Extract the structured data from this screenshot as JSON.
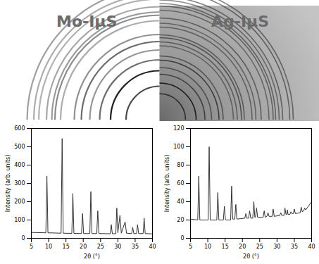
{
  "chart_data": [
    {
      "type": "line",
      "title": "Mo-IμS",
      "color": "#333333",
      "grid": false,
      "xlabel": "2θ (°)",
      "ylabel": "Intensity (arb. units)",
      "xlim": [
        5,
        40
      ],
      "xticks": [
        5,
        10,
        15,
        20,
        25,
        30,
        35,
        40
      ],
      "ylim": [
        0,
        600
      ],
      "yticks": [
        0,
        100,
        200,
        300,
        400,
        500,
        600
      ],
      "x": [
        5,
        9.2,
        9.5,
        9.8,
        13.6,
        13.9,
        14.2,
        16.7,
        17.0,
        17.3,
        19.5,
        19.8,
        20.1,
        21.9,
        22.2,
        22.5,
        23.9,
        24.2,
        24.5,
        27.8,
        28.1,
        28.4,
        29.4,
        29.7,
        30.0,
        30.6,
        31.0,
        32.1,
        32.5,
        34.0,
        34.3,
        34.6,
        35.4,
        35.7,
        36.0,
        37.3,
        37.6,
        37.9,
        40
      ],
      "values": [
        32,
        30,
        340,
        30,
        28,
        545,
        28,
        27,
        245,
        27,
        26,
        135,
        26,
        26,
        255,
        26,
        26,
        150,
        26,
        25,
        75,
        25,
        25,
        165,
        30,
        125,
        28,
        90,
        28,
        26,
        60,
        26,
        26,
        75,
        26,
        26,
        110,
        26,
        24
      ]
    },
    {
      "type": "line",
      "title": "Ag-IμS",
      "color": "#333333",
      "grid": false,
      "xlabel": "2θ (°)",
      "ylabel": "Intensity (arb. units)",
      "xlim": [
        5,
        40
      ],
      "xticks": [
        5,
        10,
        15,
        20,
        25,
        30,
        35,
        40
      ],
      "ylim": [
        0,
        120
      ],
      "yticks": [
        0,
        20,
        40,
        60,
        80,
        100,
        120
      ],
      "x": [
        5,
        7.1,
        7.4,
        7.7,
        10.1,
        10.4,
        10.7,
        12.6,
        12.9,
        13.2,
        14.5,
        14.8,
        15.1,
        16.6,
        16.9,
        17.2,
        17.8,
        18.1,
        18.4,
        20.7,
        21.0,
        21.3,
        21.8,
        22.1,
        22.4,
        23.0,
        23.3,
        23.6,
        23.8,
        24.1,
        24.4,
        26.0,
        26.3,
        26.6,
        27.1,
        27.4,
        27.7,
        28.6,
        28.9,
        29.2,
        30.8,
        31.1,
        31.4,
        32.0,
        32.3,
        32.6,
        32.8,
        33.0,
        33.2,
        33.7,
        34.0,
        34.3,
        34.7,
        35.0,
        35.3,
        36.7,
        37.0,
        37.3,
        37.7,
        38.0,
        38.3,
        40
      ],
      "values": [
        21,
        20,
        68,
        20,
        20,
        100,
        20,
        20,
        50,
        20,
        20,
        35,
        20,
        20,
        57,
        21,
        21,
        37,
        21,
        22,
        27,
        22,
        22,
        30,
        22,
        22,
        40,
        23,
        23,
        33,
        23,
        23,
        30,
        23,
        24,
        28,
        24,
        24,
        32,
        24,
        25,
        28,
        25,
        25,
        33,
        26,
        26,
        31,
        26,
        26,
        29,
        27,
        27,
        32,
        27,
        28,
        34,
        29,
        30,
        33,
        31,
        40
      ]
    }
  ]
}
